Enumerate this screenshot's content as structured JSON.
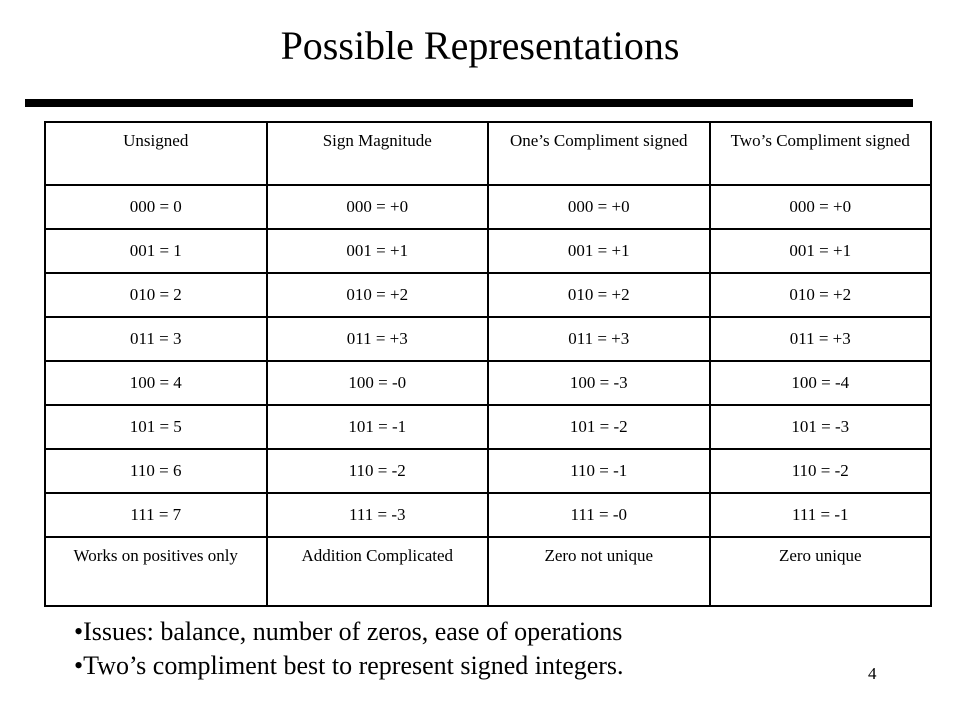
{
  "slide": {
    "title": "Possible Representations",
    "page_number": "4"
  },
  "table": {
    "headers": [
      "Unsigned",
      "Sign Magnitude",
      "One’s Compliment signed",
      "Two’s Compliment signed"
    ],
    "rows": [
      [
        "000 = 0",
        "000 = +0",
        "000 = +0",
        "000 = +0"
      ],
      [
        "001 = 1",
        "001 = +1",
        "001 = +1",
        "001 = +1"
      ],
      [
        "010 = 2",
        "010 = +2",
        "010 = +2",
        "010 = +2"
      ],
      [
        "011 = 3",
        "011 = +3",
        "011 = +3",
        "011 = +3"
      ],
      [
        "100 = 4",
        "100 = -0",
        "100 = -3",
        "100 = -4"
      ],
      [
        "101 = 5",
        "101 = -1",
        "101 = -2",
        "101 = -3"
      ],
      [
        "110 = 6",
        "110 = -2",
        "110 = -1",
        "110 = -2"
      ],
      [
        "111 = 7",
        "111 = -3",
        "111 = -0",
        "111 = -1"
      ]
    ],
    "footer": [
      "Works on positives only",
      "Addition Complicated",
      "Zero not unique",
      "Zero unique"
    ]
  },
  "bullets": [
    "•Issues:  balance, number of zeros, ease of operations",
    "•Two’s compliment best to represent signed integers."
  ]
}
